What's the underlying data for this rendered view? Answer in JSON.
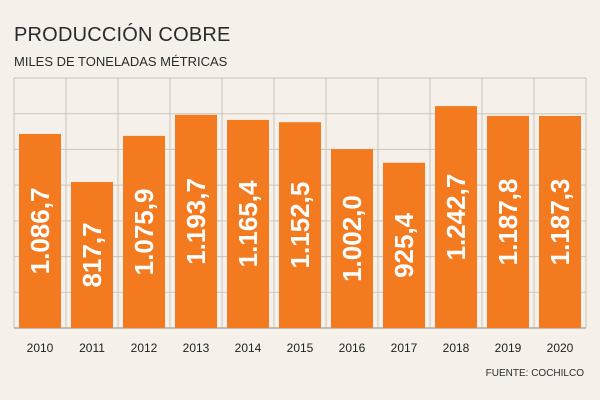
{
  "chart_data": {
    "type": "bar",
    "title": "PRODUCCIÓN COBRE",
    "subtitle": "MILES DE TONELADAS MÉTRICAS",
    "source": "FUENTE: COCHILCO",
    "categories": [
      "2010",
      "2011",
      "2012",
      "2013",
      "2014",
      "2015",
      "2016",
      "2017",
      "2018",
      "2019",
      "2020"
    ],
    "values": [
      1086.7,
      817.7,
      1075.9,
      1193.7,
      1165.4,
      1152.5,
      1002.0,
      925.4,
      1242.7,
      1187.8,
      1187.3
    ],
    "value_labels": [
      "1.086,7",
      "817,7",
      "1.075,9",
      "1.193,7",
      "1.165,4",
      "1.152,5",
      "1.002,0",
      "925,4",
      "1.242,7",
      "1.187,8",
      "1.187,3"
    ],
    "ylim": [
      0,
      1400
    ],
    "grid": true,
    "colors": {
      "bar": "#f47a20",
      "grid": "#c9c4bb",
      "background": "#f5f1ea"
    }
  }
}
